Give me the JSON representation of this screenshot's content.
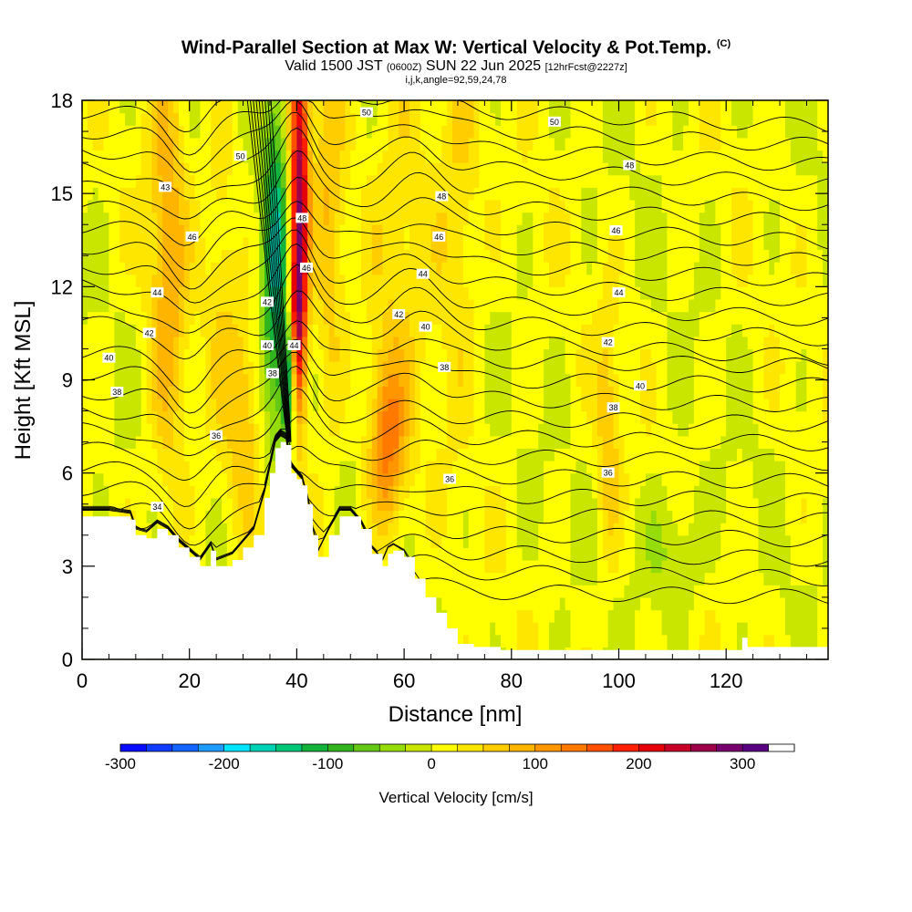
{
  "header": {
    "title": "Wind-Parallel Section at Max W: Vertical Velocity & Pot.Temp.",
    "copyright_mark": "(C)",
    "valid_prefix": "Valid 1500 JST",
    "valid_zulu": "(0600Z)",
    "valid_date": "SUN 22 Jun 2025",
    "forecast_note": "[12hrFcst@2227z]",
    "ijk_line": "i,j,k,angle=92,59,24,78"
  },
  "colors": {
    "terrain": "#ffffff",
    "contour": "#000000",
    "colorbar_levels": [
      "#0a0aff",
      "#0f3cff",
      "#1464ff",
      "#1e9bff",
      "#00e6ff",
      "#00d2b4",
      "#00c878",
      "#14b43c",
      "#32b41e",
      "#64c814",
      "#96dc0a",
      "#c8e600",
      "#ffff00",
      "#ffe600",
      "#ffcd00",
      "#ffb400",
      "#ff9600",
      "#ff7800",
      "#ff5000",
      "#ff1e00",
      "#e6000a",
      "#c80028",
      "#a0004b",
      "#78006e",
      "#5a0082"
    ]
  },
  "chart_data": {
    "type": "contour",
    "xlabel": "Distance [nm]",
    "ylabel": "Height [Kft MSL]",
    "xlim": [
      0,
      139
    ],
    "ylim": [
      0,
      18
    ],
    "xticks": [
      0,
      20,
      40,
      60,
      80,
      100,
      120
    ],
    "yticks": [
      0,
      3,
      6,
      9,
      12,
      15,
      18
    ],
    "colorbar": {
      "label": "Vertical Velocity [cm/s]",
      "range": [
        -300,
        350
      ],
      "step": 25,
      "tick_values": [
        -300,
        -200,
        -100,
        0,
        100,
        200,
        300
      ],
      "tick_labels": [
        "-300",
        "-200",
        "-100",
        "0",
        "100",
        "200",
        "300"
      ]
    },
    "terrain_profile": [
      [
        0,
        4.6
      ],
      [
        5,
        4.6
      ],
      [
        9,
        4.5
      ],
      [
        10,
        4.0
      ],
      [
        12,
        3.9
      ],
      [
        14,
        4.2
      ],
      [
        16,
        4.0
      ],
      [
        18,
        3.6
      ],
      [
        20,
        3.3
      ],
      [
        22,
        3.0
      ],
      [
        24,
        3.5
      ],
      [
        25,
        3.0
      ],
      [
        28,
        3.2
      ],
      [
        30,
        3.6
      ],
      [
        32,
        4.0
      ],
      [
        34,
        5.2
      ],
      [
        35,
        6.0
      ],
      [
        36,
        6.8
      ],
      [
        37,
        7.0
      ],
      [
        38,
        6.9
      ],
      [
        39,
        6.0
      ],
      [
        40,
        5.8
      ],
      [
        41,
        5.6
      ],
      [
        42,
        5.0
      ],
      [
        43,
        4.0
      ],
      [
        44,
        3.3
      ],
      [
        46,
        4.0
      ],
      [
        48,
        4.6
      ],
      [
        50,
        4.6
      ],
      [
        52,
        4.2
      ],
      [
        54,
        3.4
      ],
      [
        56,
        3.0
      ],
      [
        57,
        3.4
      ],
      [
        58,
        3.5
      ],
      [
        60,
        3.3
      ],
      [
        62,
        2.6
      ],
      [
        64,
        2.0
      ],
      [
        66,
        1.5
      ],
      [
        68,
        1.0
      ],
      [
        70,
        0.5
      ],
      [
        73,
        0.4
      ],
      [
        78,
        0.3
      ],
      [
        122,
        0.3
      ],
      [
        123,
        0.7
      ],
      [
        124,
        0.4
      ],
      [
        139,
        0.4
      ]
    ],
    "w_field": [
      {
        "x": 16,
        "sx": 2.5,
        "z": 13,
        "sz": 6,
        "w": 80
      },
      {
        "x": 26,
        "sx": 2,
        "z": 14,
        "sz": 5,
        "w": 40
      },
      {
        "x": 30,
        "sx": 2,
        "z": 8,
        "sz": 2.5,
        "w": 60
      },
      {
        "x": 36,
        "sx": 1.6,
        "z": 13,
        "sz": 4,
        "w": -150
      },
      {
        "x": 40.5,
        "sx": 1.2,
        "z": 15,
        "sz": 4,
        "w": 250
      },
      {
        "x": 40,
        "sx": 1.1,
        "z": 10.5,
        "sz": 2,
        "w": 150
      },
      {
        "x": 38.5,
        "sx": 0.9,
        "z": 9,
        "sz": 1.4,
        "w": -180
      },
      {
        "x": 46,
        "sx": 2,
        "z": 14,
        "sz": 5,
        "w": 60
      },
      {
        "x": 57,
        "sx": 2.5,
        "z": 7,
        "sz": 2,
        "w": 130
      },
      {
        "x": 60,
        "sx": 4,
        "z": 15,
        "sz": 4,
        "w": 40
      },
      {
        "x": 70,
        "sx": 3,
        "z": 14,
        "sz": 4,
        "w": 50
      },
      {
        "x": 110,
        "sx": 4,
        "z": 3.5,
        "sz": 1.5,
        "w": -45
      },
      {
        "x": 98,
        "sx": 1.5,
        "z": 7,
        "sz": 3,
        "w": 60
      }
    ],
    "contour_labels": [
      {
        "x": 14,
        "y": 4.9,
        "text": "34"
      },
      {
        "x": 6.5,
        "y": 8.6,
        "text": "38"
      },
      {
        "x": 5,
        "y": 9.7,
        "text": "40"
      },
      {
        "x": 12.5,
        "y": 10.5,
        "text": "42"
      },
      {
        "x": 14,
        "y": 11.8,
        "text": "44"
      },
      {
        "x": 20.5,
        "y": 13.6,
        "text": "46"
      },
      {
        "x": 15.5,
        "y": 15.2,
        "text": "43"
      },
      {
        "x": 29.5,
        "y": 16.2,
        "text": "50"
      },
      {
        "x": 25,
        "y": 7.2,
        "text": "36"
      },
      {
        "x": 35.5,
        "y": 9.2,
        "text": "38"
      },
      {
        "x": 34.5,
        "y": 10.1,
        "text": "40"
      },
      {
        "x": 34.5,
        "y": 11.5,
        "text": "42"
      },
      {
        "x": 39.5,
        "y": 10.1,
        "text": "44"
      },
      {
        "x": 41.8,
        "y": 12.6,
        "text": "46"
      },
      {
        "x": 41,
        "y": 14.2,
        "text": "48"
      },
      {
        "x": 53,
        "y": 17.6,
        "text": "50"
      },
      {
        "x": 59,
        "y": 11.1,
        "text": "42"
      },
      {
        "x": 63.5,
        "y": 12.4,
        "text": "44"
      },
      {
        "x": 64,
        "y": 10.7,
        "text": "40"
      },
      {
        "x": 66.5,
        "y": 13.6,
        "text": "46"
      },
      {
        "x": 67,
        "y": 14.9,
        "text": "48"
      },
      {
        "x": 67.5,
        "y": 9.4,
        "text": "38"
      },
      {
        "x": 68.5,
        "y": 5.8,
        "text": "36"
      },
      {
        "x": 88,
        "y": 17.3,
        "text": "50"
      },
      {
        "x": 102,
        "y": 15.9,
        "text": "48"
      },
      {
        "x": 99.5,
        "y": 13.8,
        "text": "46"
      },
      {
        "x": 100,
        "y": 11.8,
        "text": "44"
      },
      {
        "x": 98,
        "y": 10.2,
        "text": "42"
      },
      {
        "x": 104,
        "y": 8.8,
        "text": "40"
      },
      {
        "x": 99,
        "y": 8.1,
        "text": "38"
      },
      {
        "x": 98,
        "y": 6.0,
        "text": "36"
      }
    ]
  }
}
